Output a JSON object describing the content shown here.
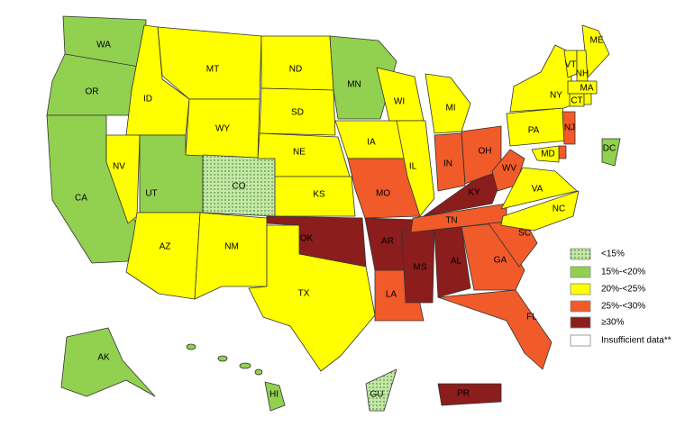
{
  "map": {
    "legend": [
      {
        "label": "<15%",
        "color": "#c4e8a6",
        "pattern": "dots"
      },
      {
        "label": "15%-<20%",
        "color": "#92d050"
      },
      {
        "label": "20%-<25%",
        "color": "#ffff00"
      },
      {
        "label": "25%-<30%",
        "color": "#f15a29"
      },
      {
        "label": "≥30%",
        "color": "#8b1d1d"
      },
      {
        "label": "Insufficient data**",
        "color": "#ffffff"
      }
    ],
    "states": [
      {
        "label": "WA",
        "class": 1
      },
      {
        "label": "OR",
        "class": 1
      },
      {
        "label": "CA",
        "class": 1
      },
      {
        "label": "ID",
        "class": 2
      },
      {
        "label": "NV",
        "class": 2
      },
      {
        "label": "UT",
        "class": 1
      },
      {
        "label": "AZ",
        "class": 2
      },
      {
        "label": "MT",
        "class": 2
      },
      {
        "label": "WY",
        "class": 2
      },
      {
        "label": "CO",
        "class": 0
      },
      {
        "label": "NM",
        "class": 2
      },
      {
        "label": "ND",
        "class": 2
      },
      {
        "label": "SD",
        "class": 2
      },
      {
        "label": "NE",
        "class": 2
      },
      {
        "label": "KS",
        "class": 2
      },
      {
        "label": "OK",
        "class": 4
      },
      {
        "label": "TX",
        "class": 2
      },
      {
        "label": "MN",
        "class": 1
      },
      {
        "label": "IA",
        "class": 2
      },
      {
        "label": "MO",
        "class": 3
      },
      {
        "label": "AR",
        "class": 4
      },
      {
        "label": "LA",
        "class": 3
      },
      {
        "label": "WI",
        "class": 2
      },
      {
        "label": "IL",
        "class": 2
      },
      {
        "label": "MS",
        "class": 4
      },
      {
        "label": "MI",
        "class": 2
      },
      {
        "label": "IN",
        "class": 3
      },
      {
        "label": "KY",
        "class": 4
      },
      {
        "label": "TN",
        "class": 3
      },
      {
        "label": "AL",
        "class": 4
      },
      {
        "label": "OH",
        "class": 3
      },
      {
        "label": "WV",
        "class": 3
      },
      {
        "label": "GA",
        "class": 3
      },
      {
        "label": "FL",
        "class": 3
      },
      {
        "label": "SC",
        "class": 3
      },
      {
        "label": "NC",
        "class": 2
      },
      {
        "label": "VA",
        "class": 2
      },
      {
        "label": "PA",
        "class": 2
      },
      {
        "label": "NY",
        "class": 2
      },
      {
        "label": "ME",
        "class": 2
      },
      {
        "label": "VT",
        "class": 2
      },
      {
        "label": "NH",
        "class": 2
      },
      {
        "label": "MA",
        "class": 2
      },
      {
        "label": "CT",
        "class": 2
      },
      {
        "class": 2
      },
      {
        "label": "NJ",
        "class": 3
      },
      {
        "class": 3
      },
      {
        "label": "MD",
        "class": 2
      },
      {
        "label": "DC",
        "class": 1
      },
      {
        "label": "AK",
        "class": 1
      },
      {
        "label": "HI",
        "class": 1
      },
      {
        "label": "GU",
        "class": 0
      },
      {
        "label": "PR",
        "class": 4
      }
    ]
  }
}
